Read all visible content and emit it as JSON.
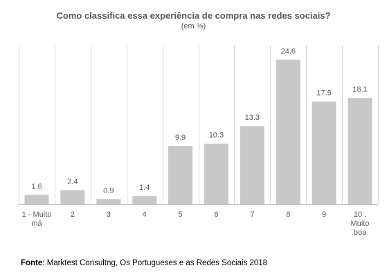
{
  "chart_data": {
    "type": "bar",
    "title": "Como classifica essa experiência de compra nas redes sociais?",
    "subtitle": "(em %)",
    "categories": [
      [
        "1 - Muito",
        "má"
      ],
      [
        "2"
      ],
      [
        "3"
      ],
      [
        "4"
      ],
      [
        "5"
      ],
      [
        "6"
      ],
      [
        "7"
      ],
      [
        "8"
      ],
      [
        "9"
      ],
      [
        "10 .",
        "Muito",
        "boa"
      ]
    ],
    "values": [
      1.6,
      2.4,
      0.9,
      1.4,
      9.9,
      10.3,
      13.3,
      24.6,
      17.5,
      18.1
    ],
    "data_labels": [
      "1.6",
      "2.4",
      "0.9",
      "1.4",
      "9.9",
      "10.3",
      "13.3",
      "24.6",
      "17.5",
      "18.1"
    ],
    "xlabel": "",
    "ylabel": "",
    "ylim": [
      0,
      27
    ],
    "grid": true,
    "legend": "none",
    "colors": {
      "bar": "#c8c8c8",
      "grid": "#d9d9d9",
      "axis": "#bfbfbf",
      "text": "#595959"
    }
  },
  "source": {
    "label": "Fonte",
    "text": ": Marktest Consultng, Os Portugueses e as Redes Sociais 2018"
  }
}
